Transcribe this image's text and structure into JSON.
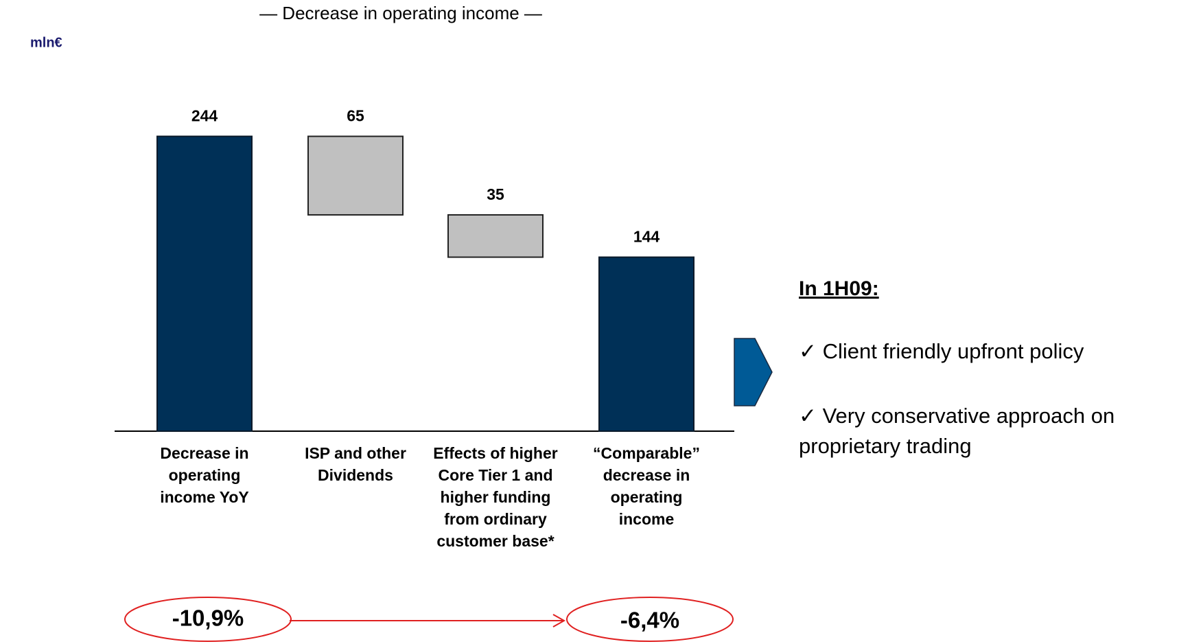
{
  "chart_data": {
    "type": "waterfall",
    "title": "— Decrease in operating income —",
    "unit_label": "mln€",
    "categories": [
      "Decrease in operating income YoY",
      "ISP and other Dividends",
      "Effects of higher Core Tier 1 and higher funding from ordinary customer base*",
      "“Comparable” decrease in operating income"
    ],
    "values": [
      244,
      65,
      35,
      144
    ],
    "kinds": [
      "total",
      "decrease",
      "decrease",
      "total"
    ],
    "colors": {
      "total": "#003057",
      "decrease": "#c0c0c0"
    },
    "ylim": [
      0,
      300
    ],
    "annotations": [
      "-10,9%",
      "-6,4%"
    ]
  },
  "side_panel": {
    "heading": "In 1H09:",
    "bullets": [
      "✓ Client friendly upfront policy",
      "✓ Very conservative approach on proprietary trading"
    ]
  }
}
